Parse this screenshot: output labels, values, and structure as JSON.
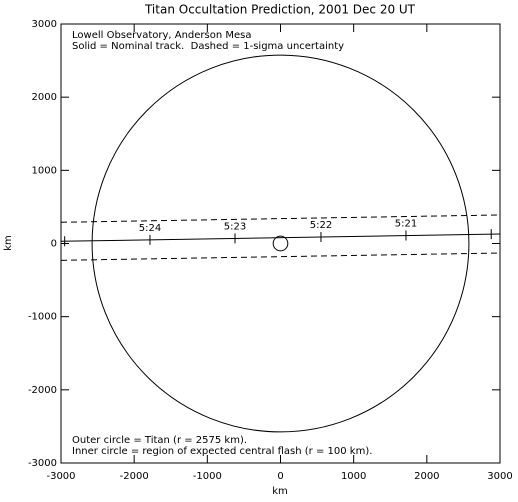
{
  "chart_data": {
    "type": "line",
    "title": "Titan Occultation Prediction, 2001 Dec 20 UT",
    "annotations_top": [
      "Lowell Observatory, Anderson Mesa",
      "Solid = Nominal track.  Dashed = 1-sigma uncertainty"
    ],
    "annotations_bottom": [
      "Outer circle = Titan (r = 2575 km).",
      "Inner circle = region of expected central flash (r = 100 km)."
    ],
    "xlabel": "km",
    "ylabel": "km",
    "xlim": [
      -3000,
      3000
    ],
    "ylim": [
      -3000,
      3000
    ],
    "xticks": [
      -3000,
      -2000,
      -1000,
      0,
      1000,
      2000,
      3000
    ],
    "yticks": [
      -3000,
      -2000,
      -1000,
      0,
      1000,
      2000,
      3000
    ],
    "color": "#000000",
    "series": [
      {
        "style": "solid",
        "x": [
          -3000,
          3000
        ],
        "values": [
          30,
          130
        ]
      },
      {
        "style": "dashed",
        "x": [
          -3000,
          3000
        ],
        "values": [
          290,
          390
        ]
      },
      {
        "style": "dashed",
        "x": [
          -3000,
          3000
        ],
        "values": [
          -230,
          -130
        ]
      }
    ],
    "circles": [
      {
        "x": 0,
        "y": 0,
        "r": 2575
      },
      {
        "x": 0,
        "y": 0,
        "r": 100
      }
    ],
    "time_marks": {
      "x": [
        -2950,
        -1784,
        -622,
        553,
        1715,
        2880
      ],
      "values": [
        31,
        50,
        70,
        89,
        109,
        128
      ],
      "labels": [
        null,
        "5:24",
        "5:23",
        "5:22",
        "5:21",
        null
      ]
    }
  }
}
